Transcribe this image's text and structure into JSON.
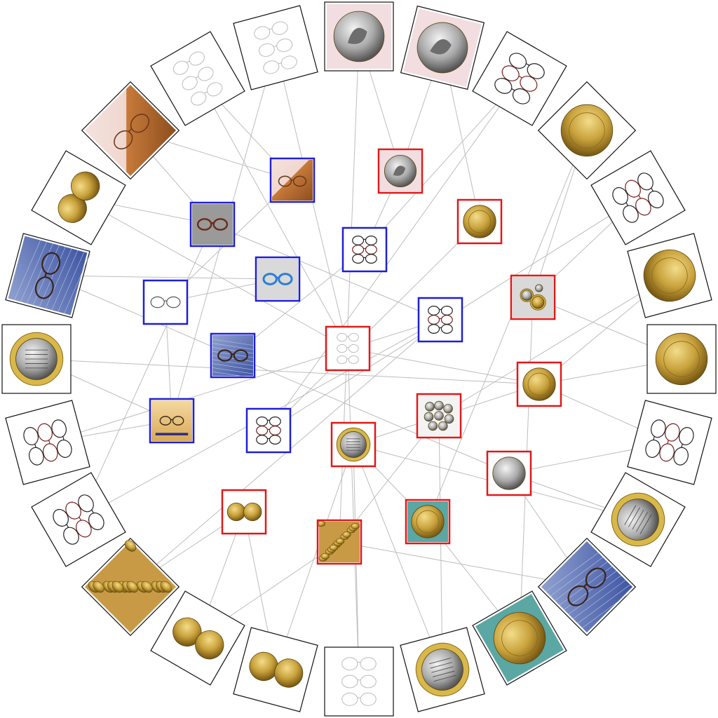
{
  "colors": {
    "background": "#ffffff",
    "edge": "#bdbdbd",
    "outer_border": "#111111",
    "glasses_cluster": "#1f1fd6",
    "coins_cluster": "#e01818"
  },
  "outer_ring": [
    {
      "id": "o1",
      "subject": "coin-greek-tetradrachm"
    },
    {
      "id": "o2",
      "subject": "coin-greek-tetradrachm"
    },
    {
      "id": "o3",
      "subject": "glasses-several-frames"
    },
    {
      "id": "o4",
      "subject": "coin-gold-eagle"
    },
    {
      "id": "o5",
      "subject": "glasses-several-frames"
    },
    {
      "id": "o6",
      "subject": "coin-gold-portrait"
    },
    {
      "id": "o7",
      "subject": "coin-gold-portrait"
    },
    {
      "id": "o8",
      "subject": "glasses-several-frames"
    },
    {
      "id": "o9",
      "subject": "coin-commemorative-bimetal"
    },
    {
      "id": "o10",
      "subject": "glasses-on-newspaper"
    },
    {
      "id": "o11",
      "subject": "coin-gold-large"
    },
    {
      "id": "o12",
      "subject": "coin-commemorative-bimetal"
    },
    {
      "id": "o13",
      "subject": "glasses-rimless-catalog"
    },
    {
      "id": "o14",
      "subject": "coin-pair-obverse-reverse"
    },
    {
      "id": "o15",
      "subject": "coin-pair-obverse-reverse"
    },
    {
      "id": "o16",
      "subject": "coin-pile-gold"
    },
    {
      "id": "o17",
      "subject": "glasses-several-frames"
    },
    {
      "id": "o18",
      "subject": "glasses-several-frames"
    },
    {
      "id": "o19",
      "subject": "coin-commemorative-bimetal"
    },
    {
      "id": "o20",
      "subject": "glasses-on-newspaper"
    },
    {
      "id": "o21",
      "subject": "coin-pair-obverse-reverse"
    },
    {
      "id": "o22",
      "subject": "glasses-on-wood"
    },
    {
      "id": "o23",
      "subject": "glasses-rimless-catalog"
    },
    {
      "id": "o24",
      "subject": "glasses-rimless-catalog"
    }
  ],
  "inner_nodes": [
    {
      "id": "i1",
      "cluster": "coins",
      "subject": "coin-greek-tetradrachm"
    },
    {
      "id": "i2",
      "cluster": "glasses",
      "subject": "glasses-on-wood"
    },
    {
      "id": "i3",
      "cluster": "glasses",
      "subject": "glasses-round-frame"
    },
    {
      "id": "i4",
      "cluster": "coins",
      "subject": "coin-gold-eagle"
    },
    {
      "id": "i5",
      "cluster": "glasses",
      "subject": "glasses-several-frames"
    },
    {
      "id": "i6",
      "cluster": "glasses",
      "subject": "glasses-blue-plastic"
    },
    {
      "id": "i7",
      "cluster": "glasses",
      "subject": "glasses-wire-frame"
    },
    {
      "id": "i8",
      "cluster": "coins",
      "subject": "coin-euro-set"
    },
    {
      "id": "i9",
      "cluster": "glasses",
      "subject": "glasses-several-frames"
    },
    {
      "id": "i10",
      "cluster": "glasses",
      "subject": "glasses-on-newspaper"
    },
    {
      "id": "i11",
      "cluster": "coins",
      "subject": "glasses-rimless-catalog"
    },
    {
      "id": "i12",
      "cluster": "coins",
      "subject": "coin-gold-portrait"
    },
    {
      "id": "i13",
      "cluster": "glasses",
      "subject": "glasses-on-book-cover"
    },
    {
      "id": "i14",
      "cluster": "coins",
      "subject": "coin-assorted-silver"
    },
    {
      "id": "i15",
      "cluster": "glasses",
      "subject": "glasses-several-frames"
    },
    {
      "id": "i16",
      "cluster": "coins",
      "subject": "coin-commemorative-bimetal"
    },
    {
      "id": "i17",
      "cluster": "coins",
      "subject": "coin-silver-eagle"
    },
    {
      "id": "i18",
      "cluster": "coins",
      "subject": "coin-pair-obverse-reverse"
    },
    {
      "id": "i19",
      "cluster": "coins",
      "subject": "coin-gold-large"
    },
    {
      "id": "i20",
      "cluster": "coins",
      "subject": "coin-pile-gold"
    }
  ],
  "edges": [
    [
      "o1",
      "i20"
    ],
    [
      "o1",
      "i1"
    ],
    [
      "o2",
      "i1"
    ],
    [
      "o2",
      "i4"
    ],
    [
      "o3",
      "i5"
    ],
    [
      "o3",
      "i15"
    ],
    [
      "o4",
      "i8"
    ],
    [
      "o4",
      "i19"
    ],
    [
      "o5",
      "i8"
    ],
    [
      "o5",
      "i15"
    ],
    [
      "o6",
      "i12"
    ],
    [
      "o6",
      "i14"
    ],
    [
      "o7",
      "i12"
    ],
    [
      "o7",
      "i8"
    ],
    [
      "o8",
      "i12"
    ],
    [
      "o8",
      "i17"
    ],
    [
      "o9",
      "i17"
    ],
    [
      "o9",
      "i16"
    ],
    [
      "o10",
      "i20"
    ],
    [
      "o10",
      "i17"
    ],
    [
      "o11",
      "i19"
    ],
    [
      "o11",
      "i8"
    ],
    [
      "o12",
      "i16"
    ],
    [
      "o12",
      "i14"
    ],
    [
      "o13",
      "i16"
    ],
    [
      "o13",
      "i11"
    ],
    [
      "o14",
      "i18"
    ],
    [
      "o14",
      "i16"
    ],
    [
      "o15",
      "i18"
    ],
    [
      "o15",
      "i20"
    ],
    [
      "o16",
      "i18"
    ],
    [
      "o16",
      "i9"
    ],
    [
      "o17",
      "i9"
    ],
    [
      "o17",
      "i3"
    ],
    [
      "o18",
      "i13"
    ],
    [
      "o18",
      "i9"
    ],
    [
      "o19",
      "i13"
    ],
    [
      "o19",
      "i12"
    ],
    [
      "o20",
      "i6"
    ],
    [
      "o20",
      "i10"
    ],
    [
      "o21",
      "i11"
    ],
    [
      "o21",
      "i3"
    ],
    [
      "o22",
      "i2"
    ],
    [
      "o22",
      "i3"
    ],
    [
      "o23",
      "i2"
    ],
    [
      "o23",
      "i11"
    ],
    [
      "o24",
      "i11"
    ],
    [
      "o24",
      "i13"
    ],
    [
      "i1",
      "i5"
    ],
    [
      "i2",
      "i7"
    ],
    [
      "i4",
      "i15"
    ],
    [
      "i5",
      "i10"
    ],
    [
      "i6",
      "i7"
    ],
    [
      "i7",
      "i13"
    ],
    [
      "i10",
      "i17"
    ],
    [
      "i11",
      "i12"
    ],
    [
      "i12",
      "i16"
    ],
    [
      "i14",
      "i20"
    ],
    [
      "i16",
      "i19"
    ],
    [
      "i3",
      "i9"
    ]
  ]
}
